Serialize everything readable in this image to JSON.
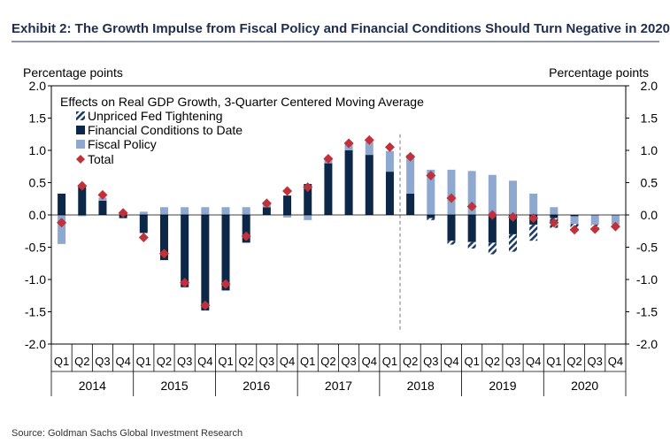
{
  "title": "Exhibit 2: The Growth Impulse from Fiscal Policy and Financial Conditions Should Turn Negative in 2020",
  "source": "Source: Goldman Sachs Global Investment Research",
  "colors": {
    "title": "#1f2d4e",
    "fci": "#0d2748",
    "fiscal": "#8fa8d0",
    "fed": "#1d3a64",
    "total": "#c0313a",
    "divider": "#7a7a7a"
  },
  "chart_data": {
    "type": "bar",
    "subtitle": "Effects on Real GDP Growth, 3-Quarter Centered Moving Average",
    "ylabel_left": "Percentage points",
    "ylabel_right": "Percentage points",
    "ylim": [
      -2.0,
      2.0
    ],
    "yticks": [
      "2.0",
      "1.5",
      "1.0",
      "0.5",
      "0.0",
      "-0.5",
      "-1.0",
      "-1.5",
      "-2.0"
    ],
    "ytick_values": [
      2.0,
      1.5,
      1.0,
      0.5,
      0.0,
      -0.5,
      -1.0,
      -1.5,
      -2.0
    ],
    "categories": [
      "Q1",
      "Q2",
      "Q3",
      "Q4",
      "Q1",
      "Q2",
      "Q3",
      "Q4",
      "Q1",
      "Q2",
      "Q3",
      "Q4",
      "Q1",
      "Q2",
      "Q3",
      "Q4",
      "Q1",
      "Q2",
      "Q3",
      "Q4",
      "Q1",
      "Q2",
      "Q3",
      "Q4",
      "Q1",
      "Q2",
      "Q3",
      "Q4"
    ],
    "years": [
      "2014",
      "2015",
      "2016",
      "2017",
      "2018",
      "2019",
      "2020"
    ],
    "forecast_divider_after_index": 16,
    "legend": [
      "Unpriced Fed Tightening",
      "Financial Conditions to Date",
      "Fiscal Policy",
      "Total"
    ],
    "series": [
      {
        "name": "Financial Conditions to Date",
        "values": [
          0.33,
          0.45,
          0.22,
          -0.05,
          -0.28,
          -0.7,
          -1.12,
          -1.48,
          -1.17,
          -0.43,
          0.12,
          0.3,
          0.48,
          0.8,
          1.0,
          0.93,
          0.67,
          0.33,
          -0.05,
          -0.4,
          -0.42,
          -0.43,
          -0.3,
          -0.15,
          -0.05,
          -0.02,
          0.0,
          0.0
        ]
      },
      {
        "name": "Fiscal Policy",
        "values": [
          -0.45,
          -0.02,
          0.05,
          0.03,
          0.05,
          0.12,
          0.12,
          0.12,
          0.12,
          0.12,
          0.07,
          -0.04,
          -0.08,
          0.06,
          0.13,
          0.2,
          0.32,
          0.6,
          0.7,
          0.7,
          0.68,
          0.62,
          0.53,
          0.33,
          0.12,
          -0.12,
          -0.15,
          -0.15
        ]
      },
      {
        "name": "Unpriced Fed Tightening",
        "values": [
          0,
          0,
          0,
          0,
          0,
          0,
          0,
          0,
          0,
          0,
          0,
          0,
          0,
          0,
          0,
          0,
          0,
          0,
          -0.03,
          -0.06,
          -0.1,
          -0.18,
          -0.27,
          -0.25,
          -0.15,
          -0.09,
          -0.06,
          -0.02
        ]
      },
      {
        "name": "Total",
        "values": [
          -0.12,
          0.45,
          0.31,
          0.03,
          -0.35,
          -0.6,
          -1.05,
          -1.4,
          -1.07,
          -0.33,
          0.18,
          0.37,
          0.43,
          0.87,
          1.11,
          1.16,
          1.05,
          0.9,
          0.61,
          0.26,
          0.13,
          0.0,
          -0.03,
          -0.05,
          -0.12,
          -0.23,
          -0.22,
          -0.18
        ]
      }
    ]
  }
}
